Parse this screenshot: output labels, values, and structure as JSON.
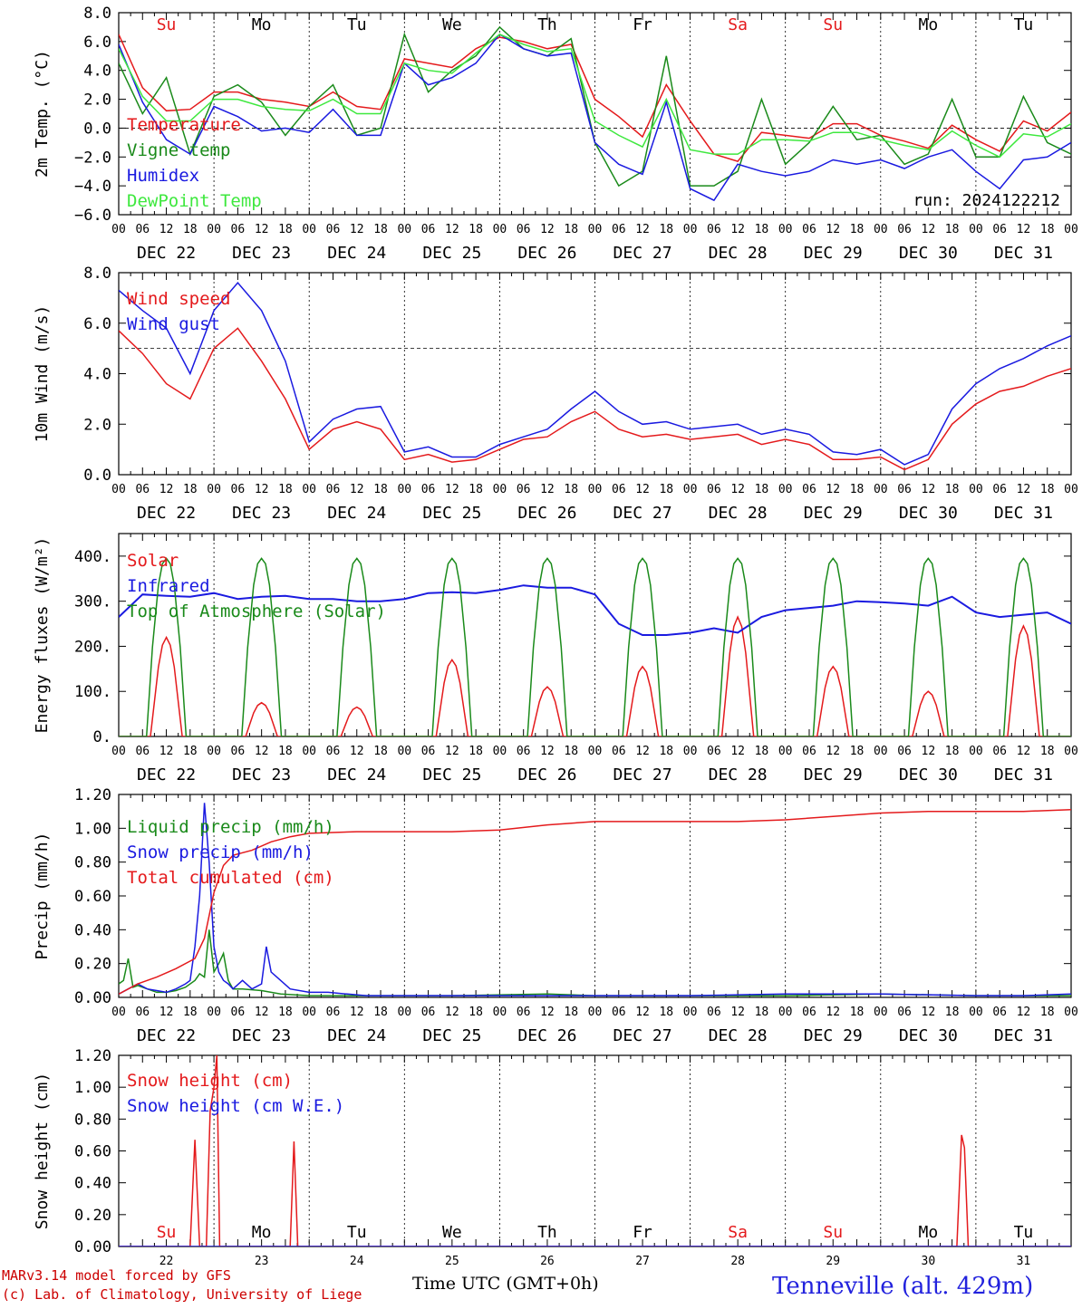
{
  "station": "Tenneville (alt. 429m)",
  "credit_lines": [
    "MARv3.14 model forced by GFS",
    "(c) Lab. of Climatology, University of Liege"
  ],
  "x_title": "Time UTC (GMT+0h)",
  "run_label": "run: 2024122212",
  "hour_ticks": [
    "00",
    "06",
    "12",
    "18"
  ],
  "final_hour_tick": "00",
  "date_labels": [
    "DEC 22",
    "DEC 23",
    "DEC 24",
    "DEC 25",
    "DEC 26",
    "DEC 27",
    "DEC 28",
    "DEC 29",
    "DEC 30",
    "DEC 31"
  ],
  "day_names": [
    "Su",
    "Mo",
    "Tu",
    "We",
    "Th",
    "Fr",
    "Sa",
    "Su",
    "Mo",
    "Tu"
  ],
  "day_numbers": [
    "22",
    "23",
    "24",
    "25",
    "26",
    "27",
    "28",
    "29",
    "30",
    "31"
  ],
  "colors": {
    "red": "#e41a1c",
    "green": "#1a8a1a",
    "blue": "#1a1ae0",
    "lightgreen": "#3ee83e",
    "weekend": "#e41a1c",
    "weekday": "#000000"
  },
  "chart_data": [
    {
      "type": "line",
      "ylabel": "2m Temp. (°C)",
      "ylim": [
        -6,
        8
      ],
      "yticks": [
        "8.0",
        "6.0",
        "4.0",
        "2.0",
        "0.0",
        "−2.0",
        "−4.0",
        "−6.0"
      ],
      "ytick_values": [
        8,
        6,
        4,
        2,
        0,
        -2,
        -4,
        -6
      ],
      "ref_line": 0,
      "x_days": [
        0,
        10
      ],
      "series": [
        {
          "name": "Temperature",
          "color": "red",
          "x": [
            0,
            0.25,
            0.5,
            0.75,
            1,
            1.25,
            1.5,
            1.75,
            2,
            2.25,
            2.5,
            2.75,
            3,
            3.25,
            3.5,
            3.75,
            4,
            4.25,
            4.5,
            4.75,
            5,
            5.25,
            5.5,
            5.75,
            6,
            6.25,
            6.5,
            6.75,
            7,
            7.25,
            7.5,
            7.75,
            8,
            8.25,
            8.5,
            8.75,
            9,
            9.25,
            9.5,
            9.75,
            10
          ],
          "values": [
            6.5,
            2.8,
            1.2,
            1.3,
            2.5,
            2.5,
            2.0,
            1.8,
            1.5,
            2.5,
            1.5,
            1.3,
            4.8,
            4.5,
            4.2,
            5.5,
            6.3,
            6.0,
            5.5,
            5.8,
            2.0,
            0.8,
            -0.6,
            3.0,
            0.5,
            -1.8,
            -2.3,
            -0.3,
            -0.5,
            -0.7,
            0.3,
            0.3,
            -0.5,
            -0.9,
            -1.4,
            0.2,
            -0.8,
            -1.6,
            0.5,
            -0.2,
            1.1
          ]
        },
        {
          "name": "Vigne temp",
          "color": "green",
          "x": [
            0,
            0.25,
            0.5,
            0.75,
            1,
            1.25,
            1.5,
            1.75,
            2,
            2.25,
            2.5,
            2.75,
            3,
            3.25,
            3.5,
            3.75,
            4,
            4.25,
            4.5,
            4.75,
            5,
            5.25,
            5.5,
            5.75,
            6,
            6.25,
            6.5,
            6.75,
            7,
            7.25,
            7.5,
            7.75,
            8,
            8.25,
            8.5,
            8.75,
            9,
            9.25,
            9.5,
            9.75,
            10
          ],
          "values": [
            4.5,
            1.0,
            3.5,
            -1.8,
            2.2,
            3.0,
            1.8,
            -0.5,
            1.5,
            3.0,
            -0.5,
            0.0,
            6.5,
            2.5,
            4.0,
            5.0,
            7.0,
            5.5,
            5.0,
            6.2,
            -1.0,
            -4.0,
            -3.0,
            5.0,
            -4.0,
            -4.0,
            -3.0,
            2.0,
            -2.5,
            -1.0,
            1.5,
            -0.8,
            -0.5,
            -2.5,
            -1.8,
            2.0,
            -2.0,
            -2.0,
            2.2,
            -1.0,
            -1.8
          ]
        },
        {
          "name": "Humidex",
          "color": "blue",
          "x": [
            0,
            0.25,
            0.5,
            0.75,
            1,
            1.25,
            1.5,
            1.75,
            2,
            2.25,
            2.5,
            2.75,
            3,
            3.25,
            3.5,
            3.75,
            4,
            4.25,
            4.5,
            4.75,
            5,
            5.25,
            5.5,
            5.75,
            6,
            6.25,
            6.5,
            6.75,
            7,
            7.25,
            7.5,
            7.75,
            8,
            8.25,
            8.5,
            8.75,
            9,
            9.25,
            9.5,
            9.75,
            10
          ],
          "values": [
            5.8,
            1.8,
            -0.8,
            -1.8,
            1.5,
            0.8,
            -0.2,
            0.0,
            -0.3,
            1.3,
            -0.5,
            -0.5,
            4.5,
            3.0,
            3.5,
            4.5,
            6.5,
            5.5,
            5.0,
            5.2,
            -1.0,
            -2.5,
            -3.2,
            1.8,
            -4.2,
            -5.0,
            -2.5,
            -3.0,
            -3.3,
            -3.0,
            -2.2,
            -2.5,
            -2.2,
            -2.8,
            -2.0,
            -1.5,
            -3.0,
            -4.2,
            -2.2,
            -2.0,
            -1.0
          ]
        },
        {
          "name": "DewPoint Temp",
          "color": "lightgreen",
          "x": [
            0,
            0.25,
            0.5,
            0.75,
            1,
            1.25,
            1.5,
            1.75,
            2,
            2.25,
            2.5,
            2.75,
            3,
            3.25,
            3.5,
            3.75,
            4,
            4.25,
            4.5,
            4.75,
            5,
            5.25,
            5.5,
            5.75,
            6,
            6.25,
            6.5,
            6.75,
            7,
            7.25,
            7.5,
            7.75,
            8,
            8.25,
            8.5,
            8.75,
            9,
            9.25,
            9.5,
            9.75,
            10
          ],
          "values": [
            5.5,
            2.2,
            0.5,
            0.5,
            2.0,
            2.0,
            1.5,
            1.3,
            1.2,
            2.0,
            1.0,
            1.0,
            4.5,
            4.0,
            3.8,
            5.2,
            6.5,
            5.8,
            5.3,
            5.5,
            0.5,
            -0.5,
            -1.3,
            2.0,
            -1.5,
            -1.8,
            -1.8,
            -0.8,
            -0.8,
            -0.9,
            -0.3,
            -0.3,
            -0.8,
            -1.2,
            -1.5,
            -0.2,
            -1.2,
            -2.0,
            -0.4,
            -0.6,
            0.3
          ]
        }
      ]
    },
    {
      "type": "line",
      "ylabel": "10m Wind (m/s)",
      "ylim": [
        0,
        8
      ],
      "yticks": [
        "8.0",
        "6.0",
        "4.0",
        "2.0",
        "0.0"
      ],
      "ytick_values": [
        8,
        6,
        4,
        2,
        0
      ],
      "ref_line": 5,
      "series": [
        {
          "name": "Wind speed",
          "color": "red",
          "x": [
            0,
            0.25,
            0.5,
            0.75,
            1,
            1.25,
            1.5,
            1.75,
            2,
            2.25,
            2.5,
            2.75,
            3,
            3.25,
            3.5,
            3.75,
            4,
            4.25,
            4.5,
            4.75,
            5,
            5.25,
            5.5,
            5.75,
            6,
            6.25,
            6.5,
            6.75,
            7,
            7.25,
            7.5,
            7.75,
            8,
            8.25,
            8.5,
            8.75,
            9,
            9.25,
            9.5,
            9.75,
            10
          ],
          "values": [
            5.7,
            4.8,
            3.6,
            3.0,
            5.0,
            5.8,
            4.5,
            3.0,
            1.0,
            1.8,
            2.1,
            1.8,
            0.6,
            0.8,
            0.5,
            0.6,
            1.0,
            1.4,
            1.5,
            2.1,
            2.5,
            1.8,
            1.5,
            1.6,
            1.4,
            1.5,
            1.6,
            1.2,
            1.4,
            1.2,
            0.6,
            0.6,
            0.7,
            0.2,
            0.6,
            2.0,
            2.8,
            3.3,
            3.5,
            3.9,
            4.2
          ]
        },
        {
          "name": "Wind gust",
          "color": "blue",
          "x": [
            0,
            0.25,
            0.5,
            0.75,
            1,
            1.25,
            1.5,
            1.75,
            2,
            2.25,
            2.5,
            2.75,
            3,
            3.25,
            3.5,
            3.75,
            4,
            4.25,
            4.5,
            4.75,
            5,
            5.25,
            5.5,
            5.75,
            6,
            6.25,
            6.5,
            6.75,
            7,
            7.25,
            7.5,
            7.75,
            8,
            8.25,
            8.5,
            8.75,
            9,
            9.25,
            9.5,
            9.75,
            10
          ],
          "values": [
            7.3,
            6.5,
            5.8,
            4.0,
            6.5,
            7.6,
            6.5,
            4.5,
            1.3,
            2.2,
            2.6,
            2.7,
            0.9,
            1.1,
            0.7,
            0.7,
            1.2,
            1.5,
            1.8,
            2.6,
            3.3,
            2.5,
            2.0,
            2.1,
            1.8,
            1.9,
            2.0,
            1.6,
            1.8,
            1.6,
            0.9,
            0.8,
            1.0,
            0.4,
            0.8,
            2.6,
            3.6,
            4.2,
            4.6,
            5.1,
            5.5
          ]
        }
      ]
    },
    {
      "type": "line",
      "ylabel": "Energy fluxes (W/m²)",
      "ylim": [
        0,
        450
      ],
      "yticks": [
        "400.",
        "300.",
        "200.",
        "100.",
        "0."
      ],
      "ytick_values": [
        400,
        300,
        200,
        100,
        0
      ],
      "series": [
        {
          "name": "Solar",
          "color": "red",
          "peaks": [
            220,
            75,
            65,
            170,
            110,
            155,
            265,
            155,
            100,
            245
          ]
        },
        {
          "name": "Infrared",
          "color": "blue",
          "x": [
            0,
            0.25,
            0.5,
            0.75,
            1,
            1.25,
            1.5,
            1.75,
            2,
            2.25,
            2.5,
            2.75,
            3,
            3.25,
            3.5,
            3.75,
            4,
            4.25,
            4.5,
            4.75,
            5,
            5.25,
            5.5,
            5.75,
            6,
            6.25,
            6.5,
            6.75,
            7,
            7.25,
            7.5,
            7.75,
            8,
            8.25,
            8.5,
            8.75,
            9,
            9.25,
            9.5,
            9.75,
            10
          ],
          "values": [
            265,
            315,
            312,
            310,
            318,
            305,
            310,
            312,
            305,
            305,
            300,
            300,
            305,
            318,
            320,
            318,
            325,
            335,
            330,
            330,
            315,
            250,
            225,
            225,
            230,
            240,
            230,
            265,
            280,
            285,
            290,
            300,
            298,
            295,
            290,
            310,
            275,
            265,
            270,
            275,
            250
          ]
        },
        {
          "name": "Top of Atmosphere (Solar)",
          "color": "green",
          "peak": 395
        }
      ]
    },
    {
      "type": "line",
      "ylabel": "Precip (mm/h)",
      "ylim": [
        0,
        1.2
      ],
      "yticks": [
        "1.20",
        "1.00",
        "0.80",
        "0.60",
        "0.40",
        "0.20",
        "0.00"
      ],
      "ytick_values": [
        1.2,
        1.0,
        0.8,
        0.6,
        0.4,
        0.2,
        0.0
      ],
      "series": [
        {
          "name": "Liquid precip (mm/h)",
          "color": "green",
          "x": [
            0,
            0.05,
            0.1,
            0.15,
            0.2,
            0.3,
            0.4,
            0.5,
            0.6,
            0.7,
            0.8,
            0.85,
            0.9,
            0.95,
            1.0,
            1.05,
            1.1,
            1.15,
            1.2,
            1.3,
            1.5,
            1.7,
            2.0,
            2.5,
            3.0,
            3.5,
            4.5,
            5.0,
            5.5,
            6.0,
            7.0,
            8.0,
            9.0,
            10.0
          ],
          "values": [
            0.08,
            0.1,
            0.23,
            0.06,
            0.07,
            0.05,
            0.03,
            0.03,
            0.04,
            0.06,
            0.1,
            0.14,
            0.12,
            0.4,
            0.15,
            0.2,
            0.26,
            0.1,
            0.05,
            0.05,
            0.04,
            0.02,
            0.01,
            0.01,
            0.01,
            0.01,
            0.02,
            0.01,
            0.01,
            0.01,
            0.01,
            0.02,
            0.01,
            0.01
          ]
        },
        {
          "name": "Snow precip (mm/h)",
          "color": "blue",
          "x": [
            0,
            0.1,
            0.2,
            0.3,
            0.4,
            0.5,
            0.6,
            0.7,
            0.75,
            0.8,
            0.85,
            0.9,
            0.95,
            1.0,
            1.05,
            1.1,
            1.15,
            1.2,
            1.3,
            1.4,
            1.5,
            1.55,
            1.6,
            1.7,
            1.8,
            2.0,
            2.2,
            2.4,
            2.6,
            3.0,
            3.5,
            4.0,
            5.0,
            6.0,
            7.0,
            7.5,
            8.0,
            9.0,
            9.5,
            10.0
          ],
          "values": [
            0.02,
            0.05,
            0.08,
            0.05,
            0.04,
            0.03,
            0.05,
            0.08,
            0.1,
            0.3,
            0.6,
            1.15,
            0.8,
            0.3,
            0.15,
            0.1,
            0.08,
            0.05,
            0.1,
            0.05,
            0.08,
            0.3,
            0.15,
            0.1,
            0.05,
            0.03,
            0.03,
            0.02,
            0.01,
            0.01,
            0.01,
            0.01,
            0.01,
            0.01,
            0.02,
            0.02,
            0.02,
            0.01,
            0.01,
            0.02
          ]
        },
        {
          "name": "Total cumulated (cm)",
          "color": "red",
          "x": [
            0,
            0.2,
            0.4,
            0.6,
            0.8,
            0.9,
            1.0,
            1.1,
            1.2,
            1.4,
            1.6,
            1.8,
            2.0,
            2.5,
            3.0,
            3.5,
            4.0,
            4.5,
            5.0,
            5.5,
            6.0,
            6.5,
            7.0,
            7.5,
            8.0,
            8.5,
            9.0,
            9.5,
            10.0
          ],
          "values": [
            0.02,
            0.08,
            0.12,
            0.17,
            0.23,
            0.35,
            0.62,
            0.78,
            0.84,
            0.87,
            0.92,
            0.95,
            0.97,
            0.98,
            0.98,
            0.98,
            0.99,
            1.02,
            1.04,
            1.04,
            1.04,
            1.04,
            1.05,
            1.07,
            1.09,
            1.1,
            1.1,
            1.1,
            1.11
          ]
        }
      ]
    },
    {
      "type": "line",
      "ylabel": "Snow height (cm)",
      "ylim": [
        0,
        1.2
      ],
      "yticks": [
        "1.20",
        "1.00",
        "0.80",
        "0.60",
        "0.40",
        "0.20",
        "0.00"
      ],
      "ytick_values": [
        1.2,
        1.0,
        0.8,
        0.6,
        0.4,
        0.2,
        0.0
      ],
      "series": [
        {
          "name": "Snow height (cm)",
          "color": "red",
          "x": [
            0,
            0.75,
            0.8,
            0.85,
            0.88,
            0.92,
            0.96,
            1.0,
            1.03,
            1.06,
            1.1,
            1.8,
            1.84,
            1.88,
            1.92,
            8.8,
            8.85,
            8.88,
            8.92,
            8.96,
            10.0
          ],
          "values": [
            0,
            0,
            0.67,
            0,
            0,
            0,
            0.85,
            1.0,
            1.2,
            0,
            0,
            0,
            0.66,
            0,
            0,
            0,
            0.7,
            0.62,
            0,
            0,
            0
          ]
        },
        {
          "name": "Snow height (cm W.E.)",
          "color": "blue",
          "x": [
            0,
            10
          ],
          "values": [
            0,
            0
          ]
        }
      ]
    }
  ]
}
